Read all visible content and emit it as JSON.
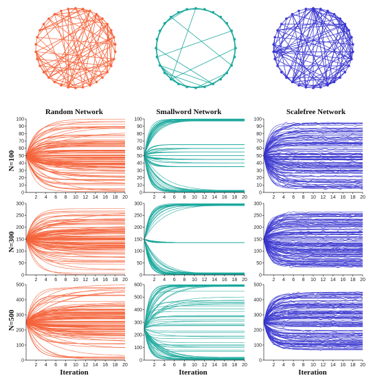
{
  "colors": {
    "random": "#f4633a",
    "smallworld": "#1aa89c",
    "scalefree": "#3a36cf"
  },
  "column_titles": [
    "Random Network",
    "Smallword Network",
    "Scalefree Network"
  ],
  "row_labels": [
    "N=100",
    "N=300",
    "N=500"
  ],
  "x_axis_label": "Iteration",
  "network_graphs": [
    {
      "type": "random",
      "color_key": "random"
    },
    {
      "type": "smallworld",
      "color_key": "smallworld"
    },
    {
      "type": "scalefree",
      "color_key": "scalefree"
    }
  ],
  "chart_data": [
    {
      "type": "line",
      "network": "random",
      "row": "N=100",
      "x_ticks": [
        2,
        4,
        6,
        8,
        10,
        12,
        14,
        16,
        18,
        20
      ],
      "xlim": [
        0,
        20
      ],
      "y_ticks": [
        0,
        10,
        20,
        30,
        40,
        50,
        60,
        70,
        80,
        90,
        100
      ],
      "ylim": [
        0,
        100
      ],
      "start": 50,
      "final_range": [
        0,
        100
      ],
      "description_values": {
        "dense_band": [
          35,
          65
        ]
      }
    },
    {
      "type": "line",
      "network": "smallworld",
      "row": "N=100",
      "x_ticks": [
        2,
        4,
        6,
        8,
        10,
        12,
        14,
        16,
        18,
        20
      ],
      "xlim": [
        0,
        20
      ],
      "y_ticks": [
        0,
        10,
        20,
        30,
        40,
        50,
        60,
        70,
        80,
        90,
        100
      ],
      "ylim": [
        0,
        100
      ],
      "start": 50,
      "final_range": [
        0,
        100
      ],
      "plateaus": [
        35,
        40,
        45,
        50,
        55,
        60,
        65
      ]
    },
    {
      "type": "line",
      "network": "scalefree",
      "row": "N=100",
      "x_ticks": [
        2,
        4,
        6,
        8,
        10,
        12,
        14,
        16,
        18,
        20
      ],
      "xlim": [
        0,
        20
      ],
      "y_ticks": [
        0,
        10,
        20,
        30,
        40,
        50,
        60,
        70,
        80,
        90,
        100
      ],
      "ylim": [
        0,
        100
      ],
      "start": 50,
      "final_range": [
        5,
        95
      ]
    },
    {
      "type": "line",
      "network": "random",
      "row": "N=300",
      "x_ticks": [
        2,
        4,
        6,
        8,
        10,
        12,
        14,
        16,
        18,
        20
      ],
      "xlim": [
        0,
        20
      ],
      "y_ticks": [
        0,
        50,
        100,
        150,
        200,
        250,
        300
      ],
      "ylim": [
        0,
        300
      ],
      "start": 150,
      "final_range": [
        0,
        300
      ]
    },
    {
      "type": "line",
      "network": "smallworld",
      "row": "N=300",
      "x_ticks": [
        2,
        4,
        6,
        8,
        10,
        12,
        14,
        16,
        18,
        20
      ],
      "xlim": [
        0,
        20
      ],
      "y_ticks": [
        0,
        50,
        100,
        150,
        200,
        250,
        300
      ],
      "ylim": [
        0,
        300
      ],
      "start": 150,
      "final_range": [
        0,
        300
      ],
      "plateaus": [
        135
      ]
    },
    {
      "type": "line",
      "network": "scalefree",
      "row": "N=300",
      "x_ticks": [
        2,
        4,
        6,
        8,
        10,
        12,
        14,
        16,
        18,
        20
      ],
      "xlim": [
        0,
        20
      ],
      "y_ticks": [
        0,
        50,
        100,
        150,
        200,
        250,
        300
      ],
      "ylim": [
        0,
        300
      ],
      "start": 150,
      "final_range": [
        30,
        265
      ]
    },
    {
      "type": "line",
      "network": "random",
      "row": "N=500",
      "x_ticks": [
        2,
        4,
        6,
        8,
        10,
        12,
        14,
        16,
        18,
        20
      ],
      "xlim": [
        0,
        20
      ],
      "y_ticks": [
        0,
        100,
        200,
        300,
        400,
        500
      ],
      "ylim": [
        0,
        500
      ],
      "start": 250,
      "final_range": [
        0,
        500
      ]
    },
    {
      "type": "line",
      "network": "smallworld",
      "row": "N=500",
      "x_ticks": [
        2,
        4,
        6,
        8,
        10,
        12,
        14,
        16,
        18,
        20
      ],
      "xlim": [
        0,
        20
      ],
      "y_ticks": [
        0,
        100,
        200,
        300,
        400,
        500,
        600
      ],
      "ylim": [
        0,
        600
      ],
      "start": 250,
      "final_range": [
        0,
        600
      ]
    },
    {
      "type": "line",
      "network": "scalefree",
      "row": "N=500",
      "x_ticks": [
        2,
        4,
        6,
        8,
        10,
        12,
        14,
        16,
        18,
        20
      ],
      "xlim": [
        0,
        20
      ],
      "y_ticks": [
        0,
        100,
        200,
        300,
        400,
        500
      ],
      "ylim": [
        0,
        500
      ],
      "start": 250,
      "final_range": [
        60,
        450
      ]
    }
  ]
}
